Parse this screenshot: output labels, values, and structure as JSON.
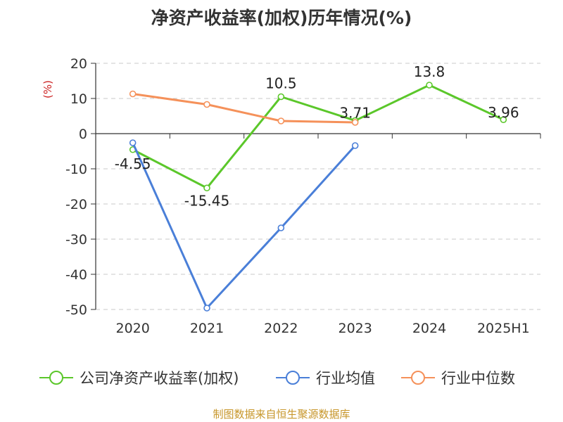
{
  "chart_data": {
    "type": "line",
    "title": "净资产收益率(加权)历年情况(%)",
    "ylabel": "(%)",
    "xlabel": "",
    "categories": [
      "2020",
      "2021",
      "2022",
      "2023",
      "2024",
      "2025H1"
    ],
    "y_ticks": [
      "20",
      "10",
      "0",
      "-10",
      "-20",
      "-30",
      "-40",
      "-50"
    ],
    "ylim": [
      -50,
      20
    ],
    "grid": true,
    "legend_position": "bottom",
    "series": [
      {
        "name": "公司净资产收益率(加权)",
        "color": "#5bc72a",
        "values": [
          -4.55,
          -15.45,
          10.5,
          3.71,
          13.8,
          3.96
        ],
        "labels": [
          "-4.55",
          "-15.45",
          "10.5",
          "3.71",
          "13.8",
          "3.96"
        ]
      },
      {
        "name": "行业均值",
        "color": "#4a7fd8",
        "values": [
          -2.6,
          -49.6,
          -26.8,
          -3.4,
          null,
          null
        ]
      },
      {
        "name": "行业中位数",
        "color": "#f5915a",
        "values": [
          11.3,
          8.3,
          3.6,
          3.2,
          null,
          null
        ]
      }
    ],
    "source": "制图数据来自恒生聚源数据库"
  }
}
